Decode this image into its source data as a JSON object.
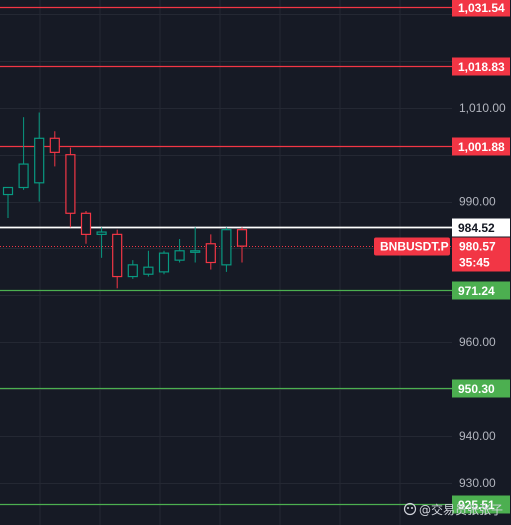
{
  "chart_data": {
    "type": "candlestick",
    "symbol": "BNBUSDT.P",
    "countdown": "35:45",
    "current_price": "980.57",
    "ylim": [
      921,
      1033
    ],
    "y_ticks": [
      {
        "value": 1010,
        "label": "1,010.00"
      },
      {
        "value": 990,
        "label": "990.00"
      },
      {
        "value": 960,
        "label": "960.00"
      },
      {
        "value": 940,
        "label": "940.00"
      },
      {
        "value": 930,
        "label": "930.00"
      }
    ],
    "levels": [
      {
        "value": 1031.54,
        "label": "1,031.54",
        "color": "#f23645"
      },
      {
        "value": 1018.83,
        "label": "1,018.83",
        "color": "#f23645"
      },
      {
        "value": 1001.88,
        "label": "1,001.88",
        "color": "#f23645"
      },
      {
        "value": 984.52,
        "label": "984.52",
        "color": "#ffffff"
      },
      {
        "value": 971.24,
        "label": "971.24",
        "color": "#4caf50"
      },
      {
        "value": 950.3,
        "label": "950.30",
        "color": "#4caf50"
      },
      {
        "value": 925.51,
        "label": "925.51",
        "color": "#4caf50"
      }
    ],
    "candles": [
      {
        "o": 991.5,
        "h": 993.0,
        "l": 986.5,
        "c": 993.0
      },
      {
        "o": 993.0,
        "h": 1008.0,
        "l": 992.5,
        "c": 998.0
      },
      {
        "o": 994.0,
        "h": 1009.0,
        "l": 990.0,
        "c": 1003.5
      },
      {
        "o": 1003.5,
        "h": 1005.0,
        "l": 997.5,
        "c": 1000.5
      },
      {
        "o": 1000.0,
        "h": 1001.5,
        "l": 984.5,
        "c": 987.5
      },
      {
        "o": 987.5,
        "h": 988.0,
        "l": 981.0,
        "c": 983.0
      },
      {
        "o": 983.0,
        "h": 984.5,
        "l": 978.0,
        "c": 983.5
      },
      {
        "o": 983.0,
        "h": 984.0,
        "l": 971.5,
        "c": 974.0
      },
      {
        "o": 974.0,
        "h": 977.5,
        "l": 973.5,
        "c": 976.5
      },
      {
        "o": 974.5,
        "h": 979.5,
        "l": 974.0,
        "c": 976.0
      },
      {
        "o": 975.0,
        "h": 979.5,
        "l": 974.5,
        "c": 979.0
      },
      {
        "o": 977.5,
        "h": 982.0,
        "l": 977.0,
        "c": 979.5
      },
      {
        "o": 979.5,
        "h": 984.5,
        "l": 977.0,
        "c": 979.5
      },
      {
        "o": 981.0,
        "h": 983.0,
        "l": 975.5,
        "c": 977.0
      },
      {
        "o": 976.5,
        "h": 984.5,
        "l": 975.0,
        "c": 984.0
      },
      {
        "o": 984.0,
        "h": 984.5,
        "l": 977.0,
        "c": 980.5
      }
    ]
  },
  "watermark": "@交易员张张子",
  "colors": {
    "background": "#161a25",
    "grid": "#242833",
    "up": "#089981",
    "down": "#f23645",
    "current_price_bg": "#f23645",
    "text": "#b2b5be"
  }
}
